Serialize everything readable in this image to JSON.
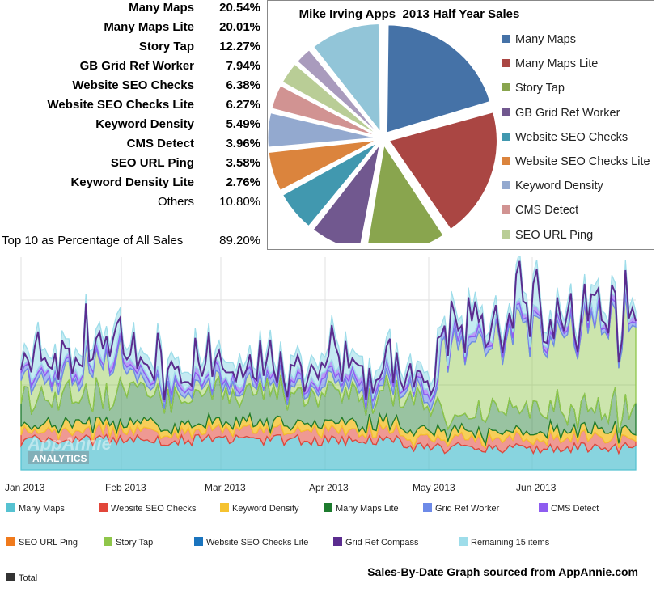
{
  "table": {
    "rows": [
      {
        "name": "Many Maps",
        "pct": "20.54%",
        "bold": true
      },
      {
        "name": "Many Maps Lite",
        "pct": "20.01%",
        "bold": true
      },
      {
        "name": "Story Tap",
        "pct": "12.27%",
        "bold": true
      },
      {
        "name": "GB Grid Ref Worker",
        "pct": "7.94%",
        "bold": true
      },
      {
        "name": "Website SEO Checks",
        "pct": "6.38%",
        "bold": true
      },
      {
        "name": "Website SEO Checks Lite",
        "pct": "6.27%",
        "bold": true
      },
      {
        "name": "Keyword Density",
        "pct": "5.49%",
        "bold": true
      },
      {
        "name": "CMS Detect",
        "pct": "3.96%",
        "bold": true
      },
      {
        "name": "SEO URL Ping",
        "pct": "3.58%",
        "bold": true
      },
      {
        "name": "Keyword Density Lite",
        "pct": "2.76%",
        "bold": true
      },
      {
        "name": "Others",
        "pct": "10.80%",
        "bold": false
      }
    ],
    "total_label": "Top 10 as Percentage of All Sales",
    "total_pct": "89.20%"
  },
  "chart_data": [
    {
      "type": "pie",
      "title": "Mike Irving Apps  2013 Half Year Sales",
      "categories": [
        "Many Maps",
        "Many Maps Lite",
        "Story Tap",
        "GB Grid Ref Worker",
        "Website SEO Checks",
        "Website SEO Checks Lite",
        "Keyword Density",
        "CMS Detect",
        "SEO URL Ping",
        "Keyword Density Lite",
        "Others"
      ],
      "values": [
        20.54,
        20.01,
        12.27,
        7.94,
        6.38,
        6.27,
        5.49,
        3.96,
        3.58,
        2.76,
        10.8
      ],
      "colors": [
        "#4572A7",
        "#AA4643",
        "#89A54E",
        "#71588F",
        "#4198AF",
        "#DB843D",
        "#93A9CF",
        "#D19392",
        "#B9CD96",
        "#A99BBD",
        "#92C5D8"
      ],
      "legend_entries": [
        "Many Maps",
        "Many Maps Lite",
        "Story Tap",
        "GB Grid Ref Worker",
        "Website SEO Checks",
        "Website SEO Checks Lite",
        "Keyword Density",
        "CMS Detect",
        "SEO URL Ping"
      ],
      "legend_placement": "right",
      "exploded": true
    },
    {
      "type": "area",
      "x_ticks": [
        "Jan 2013",
        "Feb 2013",
        "Mar 2013",
        "Apr 2013",
        "May 2013",
        "Jun 2013"
      ],
      "grid": true,
      "watermark": "AppAnnie ANALYTICS",
      "series": [
        {
          "name": "Many Maps",
          "color": "#56C2D1"
        },
        {
          "name": "Website SEO Checks",
          "color": "#E2463A"
        },
        {
          "name": "Keyword Density",
          "color": "#F5C230"
        },
        {
          "name": "Many Maps Lite",
          "color": "#1D7B2E"
        },
        {
          "name": "Grid Ref Worker",
          "color": "#6D8AE8"
        },
        {
          "name": "CMS Detect",
          "color": "#8E5CF0"
        },
        {
          "name": "SEO URL Ping",
          "color": "#F07A1C"
        },
        {
          "name": "Story Tap",
          "color": "#8FC64A"
        },
        {
          "name": "Website SEO Checks Lite",
          "color": "#1A74BE"
        },
        {
          "name": "Grid Ref Compass",
          "color": "#5B2C8F"
        },
        {
          "name": "Remaining 15 items",
          "color": "#9EDDEA"
        },
        {
          "name": "Total",
          "color": "#333333"
        }
      ]
    }
  ],
  "source_note": "Sales-By-Date Graph sourced from AppAnnie.com"
}
